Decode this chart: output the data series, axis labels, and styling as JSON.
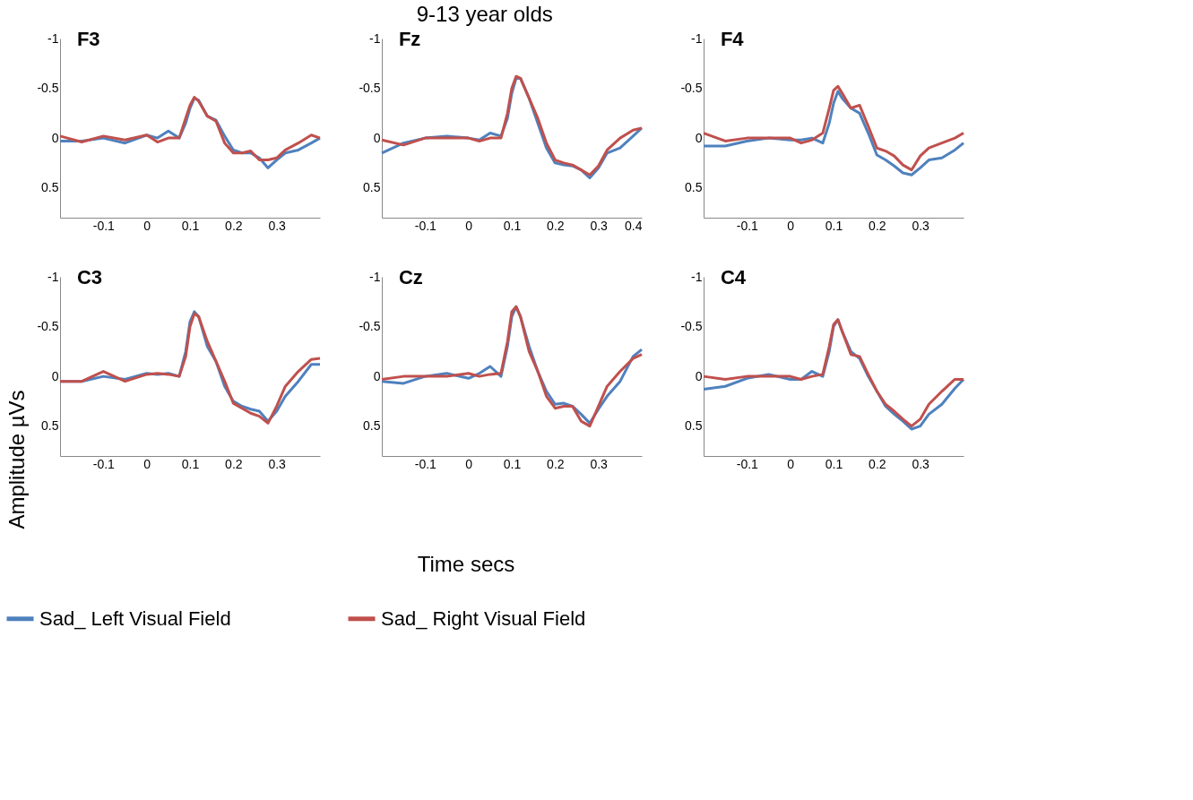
{
  "chart_data": [
    {
      "type": "other",
      "title": "9-13 year olds",
      "xlabel": "Time secs",
      "ylabel": "Amplitude µVs"
    },
    {
      "type": "line",
      "title": "F3",
      "xlim": [
        -0.2,
        0.4
      ],
      "ylim": [
        0.8,
        -1
      ],
      "xticks": [
        -0.1,
        0,
        0.1,
        0.2,
        0.3
      ],
      "yticks": [
        -1,
        -0.5,
        0,
        0.5
      ],
      "legend": "bottom",
      "x": [
        -0.2,
        -0.15,
        -0.1,
        -0.05,
        0,
        0.025,
        0.05,
        0.075,
        0.09,
        0.1,
        0.11,
        0.12,
        0.14,
        0.16,
        0.18,
        0.2,
        0.22,
        0.24,
        0.26,
        0.28,
        0.3,
        0.32,
        0.35,
        0.38,
        0.4
      ],
      "series": [
        {
          "name": "Sad_ Left Visual Field",
          "color": "#4f81bd",
          "values": [
            0.03,
            0.03,
            0.0,
            0.05,
            -0.03,
            0.0,
            -0.07,
            0.0,
            -0.15,
            -0.3,
            -0.4,
            -0.38,
            -0.22,
            -0.18,
            -0.02,
            0.12,
            0.15,
            0.15,
            0.2,
            0.3,
            0.22,
            0.15,
            0.12,
            0.05,
            0.0
          ]
        },
        {
          "name": "Sad_ Right Visual Field",
          "color": "#c0504d",
          "values": [
            -0.02,
            0.04,
            -0.02,
            0.02,
            -0.03,
            0.04,
            0.0,
            0.0,
            -0.2,
            -0.33,
            -0.41,
            -0.37,
            -0.22,
            -0.17,
            0.05,
            0.15,
            0.15,
            0.13,
            0.22,
            0.22,
            0.2,
            0.12,
            0.05,
            -0.03,
            0.0
          ]
        }
      ]
    },
    {
      "type": "line",
      "title": "Fz",
      "xlim": [
        -0.2,
        0.4
      ],
      "ylim": [
        0.8,
        -1
      ],
      "xticks": [
        -0.1,
        0,
        0.1,
        0.2,
        0.3,
        0.4
      ],
      "yticks": [
        -1,
        -0.5,
        0,
        0.5
      ],
      "legend": "bottom",
      "x": [
        -0.2,
        -0.15,
        -0.1,
        -0.05,
        0,
        0.025,
        0.05,
        0.075,
        0.09,
        0.1,
        0.11,
        0.12,
        0.14,
        0.16,
        0.18,
        0.2,
        0.22,
        0.24,
        0.26,
        0.28,
        0.3,
        0.32,
        0.35,
        0.38,
        0.4
      ],
      "series": [
        {
          "name": "Sad_ Left Visual Field",
          "color": "#4f81bd",
          "values": [
            0.15,
            0.05,
            0.0,
            -0.02,
            0.0,
            0.02,
            -0.05,
            -0.02,
            -0.2,
            -0.45,
            -0.6,
            -0.6,
            -0.4,
            -0.15,
            0.1,
            0.25,
            0.27,
            0.28,
            0.32,
            0.4,
            0.3,
            0.15,
            0.1,
            -0.02,
            -0.1
          ]
        },
        {
          "name": "Sad_ Right Visual Field",
          "color": "#c0504d",
          "values": [
            0.02,
            0.07,
            0.0,
            0.0,
            0.0,
            0.03,
            0.0,
            0.0,
            -0.25,
            -0.5,
            -0.62,
            -0.6,
            -0.4,
            -0.2,
            0.05,
            0.22,
            0.25,
            0.27,
            0.32,
            0.37,
            0.28,
            0.12,
            0.0,
            -0.08,
            -0.1
          ]
        }
      ]
    },
    {
      "type": "line",
      "title": "F4",
      "xlim": [
        -0.2,
        0.4
      ],
      "ylim": [
        0.8,
        -1
      ],
      "xticks": [
        -0.1,
        0,
        0.1,
        0.2,
        0.3
      ],
      "yticks": [
        -1,
        -0.5,
        0,
        0.5
      ],
      "legend": "bottom",
      "x": [
        -0.2,
        -0.15,
        -0.1,
        -0.05,
        0,
        0.025,
        0.05,
        0.075,
        0.09,
        0.1,
        0.11,
        0.12,
        0.14,
        0.16,
        0.18,
        0.2,
        0.22,
        0.24,
        0.26,
        0.28,
        0.3,
        0.32,
        0.35,
        0.38,
        0.4
      ],
      "series": [
        {
          "name": "Sad_ Left Visual Field",
          "color": "#4f81bd",
          "values": [
            0.08,
            0.08,
            0.03,
            0.0,
            0.02,
            0.02,
            0.0,
            0.05,
            -0.15,
            -0.35,
            -0.47,
            -0.4,
            -0.3,
            -0.25,
            -0.05,
            0.17,
            0.22,
            0.28,
            0.35,
            0.37,
            0.3,
            0.22,
            0.2,
            0.12,
            0.05
          ]
        },
        {
          "name": "Sad_ Right Visual Field",
          "color": "#c0504d",
          "values": [
            -0.05,
            0.03,
            0.0,
            0.0,
            0.0,
            0.05,
            0.02,
            -0.05,
            -0.3,
            -0.48,
            -0.52,
            -0.45,
            -0.3,
            -0.33,
            -0.12,
            0.1,
            0.13,
            0.18,
            0.27,
            0.32,
            0.18,
            0.1,
            0.05,
            0.0,
            -0.05
          ]
        }
      ]
    },
    {
      "type": "line",
      "title": "C3",
      "xlim": [
        -0.2,
        0.4
      ],
      "ylim": [
        0.8,
        -1
      ],
      "xticks": [
        -0.1,
        0,
        0.1,
        0.2,
        0.3
      ],
      "yticks": [
        -1,
        -0.5,
        0,
        0.5
      ],
      "legend": "bottom",
      "x": [
        -0.2,
        -0.15,
        -0.1,
        -0.05,
        0,
        0.025,
        0.05,
        0.075,
        0.09,
        0.1,
        0.11,
        0.12,
        0.14,
        0.16,
        0.18,
        0.2,
        0.22,
        0.24,
        0.26,
        0.28,
        0.3,
        0.32,
        0.35,
        0.38,
        0.4
      ],
      "series": [
        {
          "name": "Sad_ Left Visual Field",
          "color": "#4f81bd",
          "values": [
            0.05,
            0.05,
            0.0,
            0.03,
            -0.03,
            -0.02,
            -0.03,
            0.0,
            -0.25,
            -0.55,
            -0.65,
            -0.6,
            -0.3,
            -0.15,
            0.1,
            0.25,
            0.3,
            0.33,
            0.35,
            0.45,
            0.35,
            0.2,
            0.05,
            -0.12,
            -0.12
          ]
        },
        {
          "name": "Sad_ Right Visual Field",
          "color": "#c0504d",
          "values": [
            0.05,
            0.05,
            -0.05,
            0.05,
            -0.02,
            -0.03,
            -0.02,
            0.0,
            -0.2,
            -0.5,
            -0.63,
            -0.6,
            -0.35,
            -0.15,
            0.05,
            0.27,
            0.32,
            0.37,
            0.4,
            0.47,
            0.3,
            0.1,
            -0.05,
            -0.17,
            -0.18
          ]
        }
      ]
    },
    {
      "type": "line",
      "title": "Cz",
      "xlim": [
        -0.2,
        0.4
      ],
      "ylim": [
        0.8,
        -1
      ],
      "xticks": [
        -0.1,
        0,
        0.1,
        0.2,
        0.3
      ],
      "yticks": [
        -1,
        -0.5,
        0,
        0.5
      ],
      "legend": "bottom",
      "x": [
        -0.2,
        -0.15,
        -0.1,
        -0.05,
        0,
        0.025,
        0.05,
        0.075,
        0.09,
        0.1,
        0.11,
        0.12,
        0.14,
        0.16,
        0.18,
        0.2,
        0.22,
        0.24,
        0.26,
        0.28,
        0.3,
        0.32,
        0.35,
        0.38,
        0.4
      ],
      "series": [
        {
          "name": "Sad_ Left Visual Field",
          "color": "#4f81bd",
          "values": [
            0.05,
            0.07,
            0.0,
            -0.03,
            0.02,
            -0.03,
            -0.1,
            0.0,
            -0.3,
            -0.6,
            -0.7,
            -0.6,
            -0.3,
            -0.05,
            0.15,
            0.28,
            0.27,
            0.3,
            0.38,
            0.47,
            0.33,
            0.2,
            0.05,
            -0.2,
            -0.27
          ]
        },
        {
          "name": "Sad_ Right Visual Field",
          "color": "#c0504d",
          "values": [
            0.03,
            0.0,
            0.0,
            0.0,
            -0.03,
            0.0,
            -0.02,
            -0.03,
            -0.35,
            -0.65,
            -0.7,
            -0.6,
            -0.25,
            -0.05,
            0.2,
            0.32,
            0.3,
            0.3,
            0.45,
            0.5,
            0.3,
            0.1,
            -0.05,
            -0.18,
            -0.22
          ]
        }
      ]
    },
    {
      "type": "line",
      "title": "C4",
      "xlim": [
        -0.2,
        0.4
      ],
      "ylim": [
        0.8,
        -1
      ],
      "xticks": [
        -0.1,
        0,
        0.1,
        0.2,
        0.3
      ],
      "yticks": [
        -1,
        -0.5,
        0,
        0.5
      ],
      "legend": "bottom",
      "x": [
        -0.2,
        -0.15,
        -0.1,
        -0.05,
        0,
        0.025,
        0.05,
        0.075,
        0.09,
        0.1,
        0.11,
        0.12,
        0.14,
        0.16,
        0.18,
        0.2,
        0.22,
        0.24,
        0.26,
        0.28,
        0.3,
        0.32,
        0.35,
        0.38,
        0.4
      ],
      "series": [
        {
          "name": "Sad_ Left Visual Field",
          "color": "#4f81bd",
          "values": [
            0.13,
            0.1,
            0.02,
            -0.02,
            0.03,
            0.03,
            -0.05,
            0.0,
            -0.25,
            -0.5,
            -0.57,
            -0.45,
            -0.25,
            -0.18,
            0.0,
            0.15,
            0.3,
            0.38,
            0.45,
            0.53,
            0.5,
            0.38,
            0.28,
            0.12,
            0.03
          ]
        },
        {
          "name": "Sad_ Right Visual Field",
          "color": "#c0504d",
          "values": [
            0.0,
            0.03,
            0.0,
            0.0,
            0.0,
            0.03,
            0.0,
            -0.02,
            -0.3,
            -0.52,
            -0.57,
            -0.45,
            -0.22,
            -0.2,
            -0.02,
            0.15,
            0.28,
            0.35,
            0.43,
            0.5,
            0.43,
            0.28,
            0.15,
            0.03,
            0.03
          ]
        }
      ]
    }
  ]
}
